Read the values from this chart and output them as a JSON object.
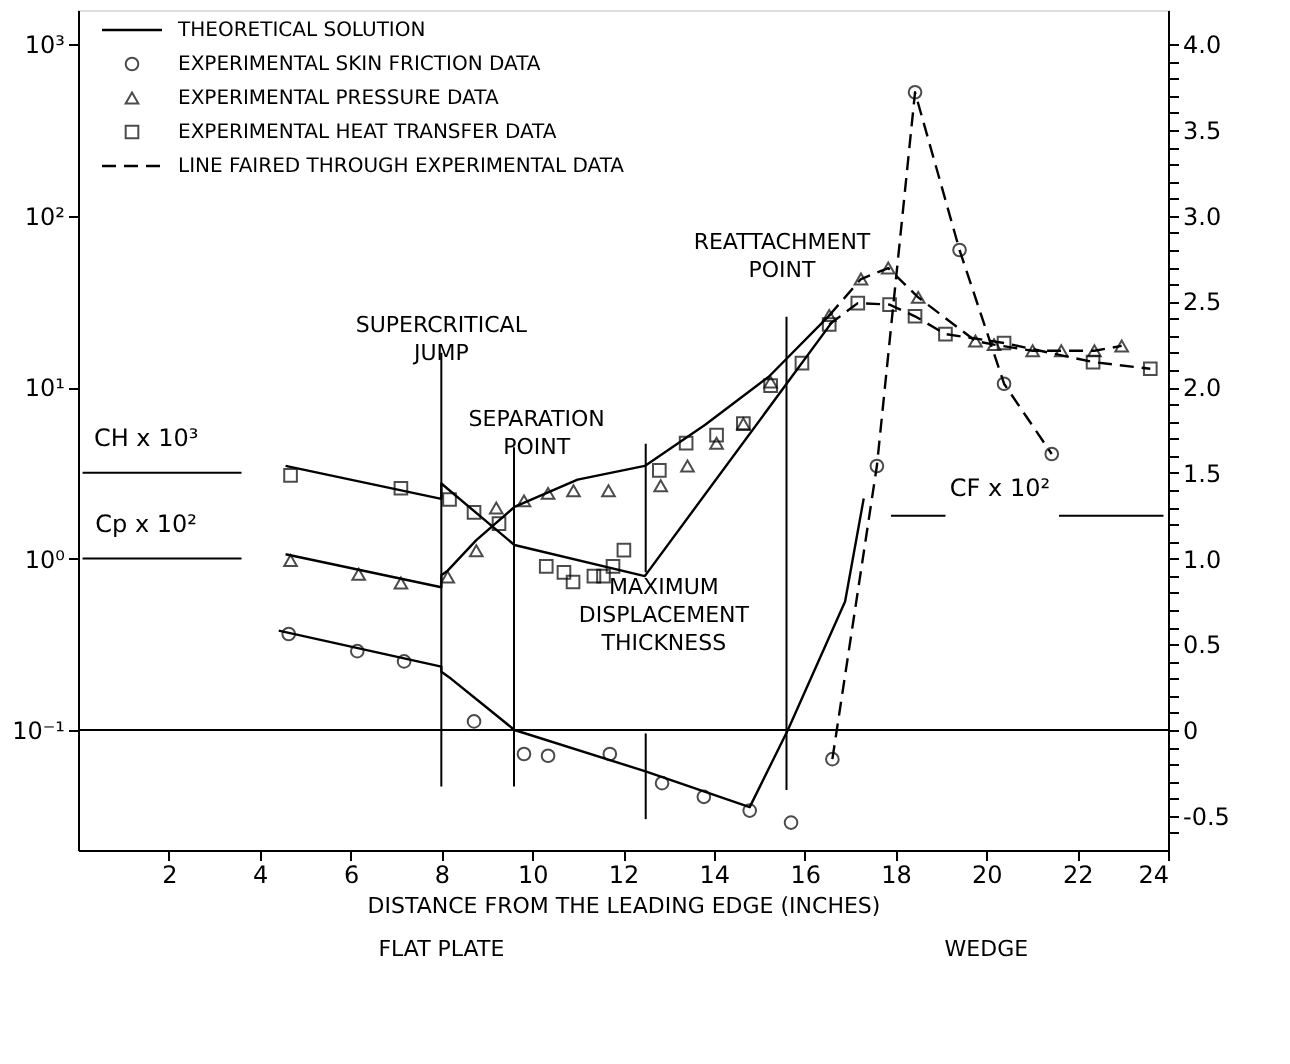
{
  "chart_data": {
    "type": "line",
    "xlabel": "DISTANCE FROM THE LEADING EDGE (INCHES)",
    "xlim": [
      0,
      24
    ],
    "xticks": [
      2,
      4,
      6,
      8,
      10,
      12,
      14,
      16,
      18,
      20,
      22,
      24
    ],
    "log": "y",
    "ylim": [
      0.01995,
      1585
    ],
    "yticks": [
      {
        "value": 0.1,
        "label": "10⁻¹"
      },
      {
        "value": 1,
        "label": "10⁰"
      },
      {
        "value": 10,
        "label": "10¹"
      },
      {
        "value": 100,
        "label": "10²"
      },
      {
        "value": 1000,
        "label": "10³"
      }
    ],
    "y2lim": [
      -0.7,
      4.2
    ],
    "y2ticks": [
      {
        "value": -0.6,
        "label": null
      },
      -0.5,
      {
        "value": -0.4,
        "label": null
      },
      {
        "value": -0.3,
        "label": null
      },
      {
        "value": -0.2,
        "label": null
      },
      {
        "value": -0.1,
        "label": null
      },
      0,
      {
        "value": 0.1,
        "label": null
      },
      {
        "value": 0.2,
        "label": null
      },
      {
        "value": 0.3,
        "label": null
      },
      {
        "value": 0.4,
        "label": null
      },
      0.5,
      {
        "value": 0.6,
        "label": null
      },
      {
        "value": 0.7,
        "label": null
      },
      {
        "value": 0.8,
        "label": null
      },
      {
        "value": 0.9,
        "label": null
      },
      {
        "value": 1,
        "label": "1.0"
      },
      {
        "value": 1.1,
        "label": null
      },
      {
        "value": 1.2,
        "label": null
      },
      {
        "value": 1.3,
        "label": null
      },
      {
        "value": 1.4,
        "label": null
      },
      1.5,
      {
        "value": 1.6,
        "label": null
      },
      {
        "value": 1.7,
        "label": null
      },
      {
        "value": 1.8,
        "label": null
      },
      {
        "value": 1.9,
        "label": null
      },
      {
        "value": 2,
        "label": "2.0"
      },
      {
        "value": 2.1,
        "label": null
      },
      {
        "value": 2.2,
        "label": null
      },
      {
        "value": 2.3,
        "label": null
      },
      {
        "value": 2.4,
        "label": null
      },
      2.5,
      {
        "value": 2.6,
        "label": null
      },
      {
        "value": 2.7,
        "label": null
      },
      {
        "value": 2.8,
        "label": null
      },
      {
        "value": 2.9,
        "label": null
      },
      {
        "value": 3,
        "label": "3.0"
      },
      {
        "value": 3.1,
        "label": null
      },
      {
        "value": 3.2,
        "label": null
      },
      {
        "value": 3.3,
        "label": null
      },
      {
        "value": 3.4,
        "label": null
      },
      3.5,
      {
        "value": 3.6,
        "label": null
      },
      {
        "value": 3.7,
        "label": null
      },
      {
        "value": 3.8,
        "label": null
      },
      {
        "value": 3.9,
        "label": null
      },
      {
        "value": 4,
        "label": "4.0"
      }
    ],
    "grid": false,
    "legend": "top left",
    "series": [
      {
        "name": "THEORETICAL SOLUTION",
        "type": "line",
        "line_style": "solid",
        "marker": "none",
        "color": "#000000",
        "x": [
          4.57,
          8.0,
          8.0,
          9.61,
          12.48,
          16.61
        ],
        "values": [
          3.47,
          2.23,
          2.74,
          1.2,
          0.79,
          24.1
        ]
      },
      {
        "type": "line",
        "line_style": "solid",
        "marker": "none",
        "color": "#000000",
        "x": [
          4.57,
          8.0,
          8.0,
          8.14,
          8.77,
          9.61,
          11.0,
          12.48,
          13.81,
          15.21,
          16.61
        ],
        "values": [
          1.06,
          0.68,
          0.8,
          0.85,
          1.28,
          2.0,
          2.89,
          3.47,
          6.03,
          11.5,
          27.3
        ]
      },
      {
        "type": "line",
        "line_style": "solid",
        "marker": "none",
        "color": "#000000",
        "axis": "y2",
        "x": [
          4.42,
          8.0,
          8.0,
          8.21,
          8.91,
          9.61,
          12.48,
          14.79,
          15.63,
          16.89,
          17.3
        ],
        "values": [
          0.58,
          0.37,
          0.34,
          0.3,
          0.15,
          0,
          -0.24,
          -0.45,
          0,
          0.75,
          1.35
        ]
      },
      {
        "name": "EXPERIMENTAL SKIN FRICTION DATA",
        "type": "scatter",
        "marker": "circle",
        "color": "#000000",
        "axis": "y2",
        "x": [
          4.64,
          6.15,
          7.18,
          8.72,
          9.82,
          10.35,
          11.71,
          12.86,
          13.78,
          14.79,
          15.7,
          16.61,
          17.59,
          18.43,
          19.41,
          20.39,
          21.44
        ],
        "values": [
          0.56,
          0.46,
          0.4,
          0.05,
          -0.14,
          -0.15,
          -0.14,
          -0.31,
          -0.39,
          -0.47,
          -0.54,
          -0.17,
          1.54,
          3.72,
          2.8,
          2.02,
          1.61
        ]
      },
      {
        "name": "EXPERIMENTAL PRESSURE DATA",
        "type": "scatter",
        "marker": "triangle",
        "color": "#000000",
        "x": [
          4.68,
          6.18,
          7.11,
          8.14,
          8.77,
          9.21,
          9.82,
          10.35,
          10.91,
          11.68,
          12.83,
          13.42,
          14.06,
          14.65,
          15.25,
          16.54,
          17.24,
          17.84,
          18.5,
          19.76,
          20.17,
          21.02,
          21.65,
          22.38,
          22.98
        ],
        "values": [
          0.975,
          0.81,
          0.72,
          0.78,
          1.11,
          1.97,
          2.17,
          2.4,
          2.49,
          2.49,
          2.66,
          3.47,
          4.71,
          6.12,
          10.7,
          26.2,
          42.7,
          49.5,
          33.4,
          18.6,
          17.7,
          16.3,
          16.3,
          16.3,
          17.4
        ]
      },
      {
        "name": "EXPERIMENTAL HEAT TRANSFER DATA",
        "type": "scatter",
        "marker": "square",
        "color": "#000000",
        "x": [
          4.68,
          7.11,
          8.18,
          8.72,
          9.27,
          10.31,
          10.7,
          10.9,
          11.36,
          11.57,
          11.78,
          12.02,
          12.8,
          13.39,
          14.06,
          14.65,
          15.25,
          15.94,
          16.54,
          17.17,
          17.87,
          18.43,
          19.1,
          20.39,
          22.35,
          23.61
        ],
        "values": [
          3.06,
          2.57,
          2.21,
          1.86,
          1.6,
          0.9,
          0.83,
          0.73,
          0.79,
          0.79,
          0.9,
          1.12,
          3.27,
          4.71,
          5.25,
          6.12,
          10.2,
          13.8,
          23.2,
          30.9,
          30.3,
          25.9,
          20.4,
          18.1,
          14.0,
          12.8
        ]
      },
      {
        "name": "LINE FAIRED THROUGH EXPERIMENTAL DATA",
        "type": "line",
        "line_style": "dashed",
        "marker": "none",
        "color": "#000000",
        "x": [
          16.54,
          17.17,
          17.87,
          18.43,
          19.1,
          20.39,
          22.35,
          23.61
        ],
        "values": [
          23.2,
          30.9,
          30.3,
          25.9,
          20.4,
          18.1,
          14.0,
          12.8
        ]
      },
      {
        "type": "line",
        "line_style": "dashed",
        "marker": "none",
        "color": "#000000",
        "x": [
          16.54,
          17.24,
          17.84,
          18.5,
          19.76,
          20.17,
          21.02,
          21.65,
          22.38,
          22.98
        ],
        "values": [
          26.2,
          42.7,
          49.5,
          33.4,
          18.6,
          17.7,
          16.3,
          16.3,
          16.3,
          17.4
        ]
      },
      {
        "type": "line",
        "line_style": "dashed",
        "marker": "none",
        "color": "#000000",
        "axis": "y2",
        "x": [
          16.61,
          17.59,
          18.43,
          19.41,
          20.39,
          21.44
        ],
        "values": [
          -0.17,
          1.54,
          3.72,
          2.8,
          2.02,
          1.61
        ]
      }
    ],
    "ref_lines": [
      {
        "axis": "x",
        "value": 8.0,
        "label": "SUPERCRITICAL JUMP"
      },
      {
        "axis": "x",
        "value": 9.6,
        "label": "SEPARATION POINT"
      },
      {
        "axis": "x",
        "value": 12.5,
        "label": "MAXIMUM DISPLACEMENT THICKNESS"
      },
      {
        "axis": "x",
        "value": 15.6,
        "label": "REATTACHMENT POINT"
      },
      {
        "axis": "y2",
        "value": 0,
        "label": null
      }
    ],
    "annotations": [
      "CH x 10³",
      "Cp x 10²",
      "CF x 10²",
      "FLAT PLATE",
      "WEDGE"
    ]
  }
}
